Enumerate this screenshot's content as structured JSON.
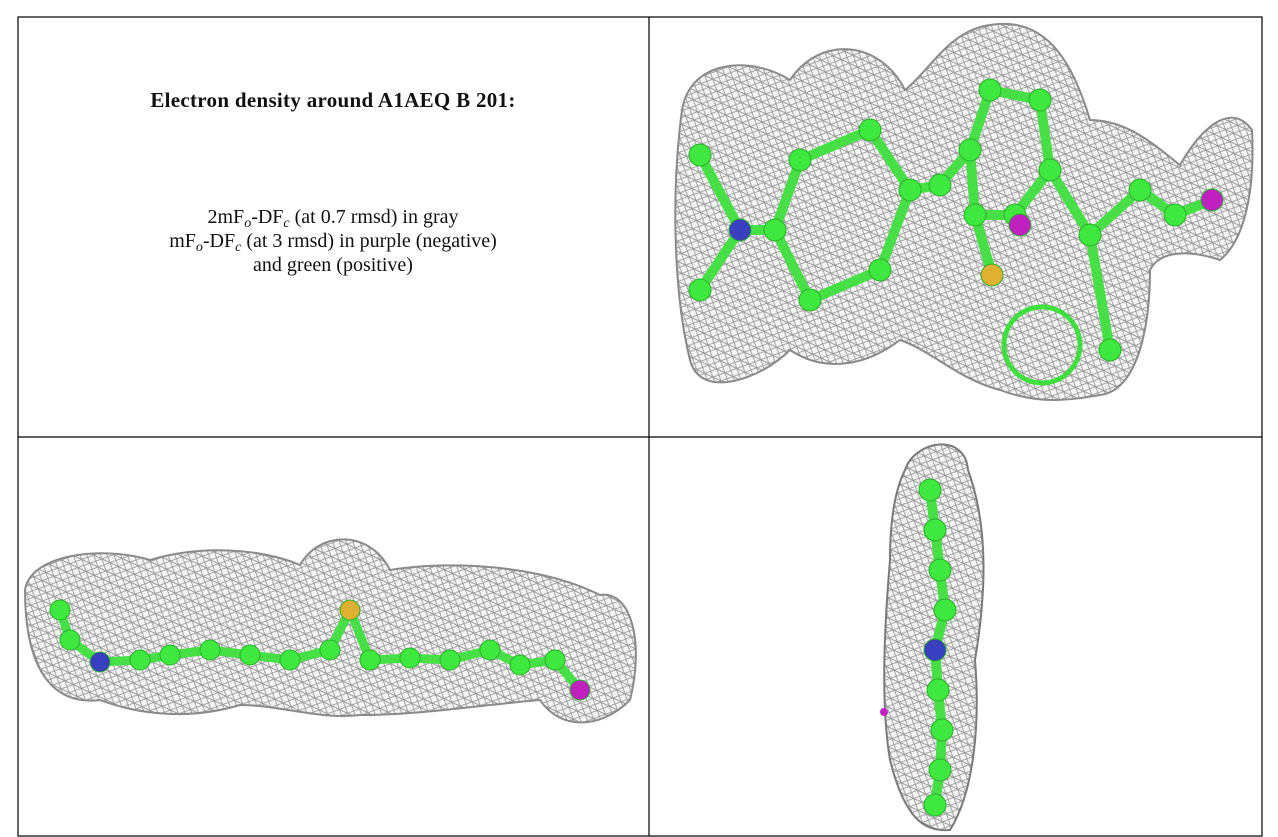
{
  "title": "Electron density around A1AEQ B 201:",
  "caption": {
    "lines": [
      [
        {
          "text": "2mF"
        },
        {
          "sub": "o"
        },
        {
          "text": "-DF"
        },
        {
          "sub": "c"
        },
        {
          "text": " (at 0.7 rmsd) in gray"
        }
      ],
      [
        {
          "text": "mF"
        },
        {
          "sub": "o"
        },
        {
          "text": "-DF"
        },
        {
          "sub": "c"
        },
        {
          "text": " (at 3 rmsd) in purple (negative)"
        }
      ],
      [
        {
          "text": "and green (positive)"
        }
      ]
    ]
  }
}
